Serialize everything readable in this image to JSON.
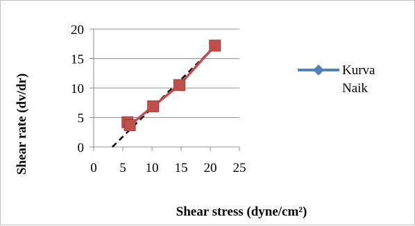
{
  "chart_data": {
    "type": "line",
    "title": "",
    "xlabel": "Shear stress (dyne/cm²)",
    "ylabel": "Shear rate (dv/dr)",
    "xlim": [
      0,
      25
    ],
    "ylim": [
      0,
      20
    ],
    "xticks": [
      0,
      5,
      10,
      15,
      20,
      25
    ],
    "yticks": [
      0,
      5,
      10,
      15,
      20
    ],
    "grid": "horizontal",
    "legend_position": "right",
    "series": [
      {
        "name": "Kurva Naik",
        "color": "#4f81bd",
        "marker": "diamond",
        "points": [
          [
            6.2,
            3.7
          ],
          [
            10.2,
            6.9
          ],
          [
            14.7,
            10.5
          ],
          [
            20.8,
            17.2
          ]
        ]
      },
      {
        "name": "",
        "color": "#c0504d",
        "marker": "square",
        "points": [
          [
            5.8,
            4.2
          ],
          [
            6.2,
            3.7
          ],
          [
            10.2,
            6.9
          ],
          [
            14.7,
            10.5
          ],
          [
            20.8,
            17.2
          ]
        ]
      }
    ],
    "trendline": {
      "style": "dashed",
      "color": "#000000",
      "start": [
        3.2,
        0
      ],
      "end": [
        21.2,
        17.5
      ]
    }
  }
}
